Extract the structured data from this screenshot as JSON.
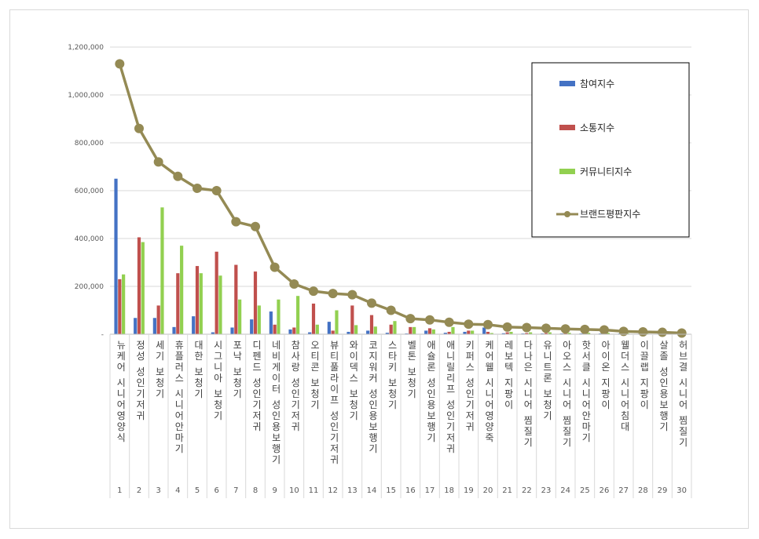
{
  "chart_data": {
    "type": "bar",
    "title": "",
    "xlabel": "",
    "ylabel": "",
    "ylim": [
      0,
      1200000
    ],
    "yticks": [
      0,
      200000,
      400000,
      600000,
      800000,
      1000000,
      1200000
    ],
    "ytick_labels": [
      "-",
      "200,000",
      "400,000",
      "600,000",
      "800,000",
      "1,000,000",
      "1,200,000"
    ],
    "grid": true,
    "legend_position": "top-right",
    "categories": [
      "뉴케어 시니어영양식",
      "정성 성인기저귀",
      "세기 보청기",
      "휴플러스 시니어안마기",
      "대한 보청기",
      "시그니아 보청기",
      "포낙 보청기",
      "디펜드 성인기저귀",
      "네비게이터 성인용보행기",
      "참사랑 성인기저귀",
      "오티콘 보청기",
      "뷰티풀라이프 성인기저귀",
      "와이덱스 보청기",
      "코지워커 성인용보행기",
      "스타키 보청기",
      "벨톤 보청기",
      "애슐론 성인용보행기",
      "애니릴리프 성인기저귀",
      "키퍼스 성인기저귀",
      "케어웰 시니어영양죽",
      "레보텍 지팡이",
      "다나은 시니어 찜질기",
      "유니트론 보청기",
      "아오스 시니어 찜질기",
      "핫서클 시니어안마기",
      "아이온 지팡이",
      "웰더스 시니어침대",
      "이끌랩 지팡이",
      "살졸 성인용보행기",
      "허브결 시니어 찜질기"
    ],
    "ranks": [
      "1",
      "2",
      "3",
      "4",
      "5",
      "6",
      "7",
      "8",
      "9",
      "10",
      "11",
      "12",
      "13",
      "14",
      "15",
      "16",
      "17",
      "18",
      "19",
      "20",
      "21",
      "22",
      "23",
      "24",
      "25",
      "26",
      "27",
      "28",
      "29",
      "30"
    ],
    "series": [
      {
        "name": "참여지수",
        "color": "#4472c4",
        "kind": "bar",
        "values": [
          650000,
          68000,
          68000,
          30000,
          75000,
          8000,
          28000,
          62000,
          95000,
          20000,
          8000,
          52000,
          10000,
          15000,
          6000,
          3000,
          15000,
          6000,
          10000,
          28000,
          4000,
          3000,
          3000,
          3000,
          3000,
          3000,
          3000,
          2000,
          2000,
          2000
        ]
      },
      {
        "name": "소통지수",
        "color": "#c0504d",
        "kind": "bar",
        "values": [
          230000,
          405000,
          120000,
          255000,
          285000,
          345000,
          290000,
          262000,
          40000,
          28000,
          128000,
          15000,
          120000,
          80000,
          40000,
          30000,
          25000,
          10000,
          15000,
          10000,
          8000,
          5000,
          5000,
          4000,
          4000,
          4000,
          3000,
          3000,
          2000,
          2000
        ]
      },
      {
        "name": "커뮤니티지수",
        "color": "#92d050",
        "kind": "bar",
        "values": [
          250000,
          385000,
          530000,
          370000,
          255000,
          245000,
          145000,
          120000,
          145000,
          160000,
          40000,
          100000,
          38000,
          32000,
          55000,
          30000,
          20000,
          30000,
          15000,
          5000,
          10000,
          8000,
          8000,
          6000,
          6000,
          6000,
          4000,
          3000,
          3000,
          2000
        ]
      },
      {
        "name": "브랜드평판지수",
        "color": "#948a54",
        "kind": "line",
        "values": [
          1130000,
          860000,
          720000,
          660000,
          610000,
          600000,
          470000,
          450000,
          280000,
          210000,
          180000,
          170000,
          165000,
          130000,
          100000,
          65000,
          60000,
          50000,
          42000,
          40000,
          30000,
          28000,
          25000,
          22000,
          20000,
          18000,
          12000,
          10000,
          8000,
          5000
        ]
      }
    ]
  }
}
